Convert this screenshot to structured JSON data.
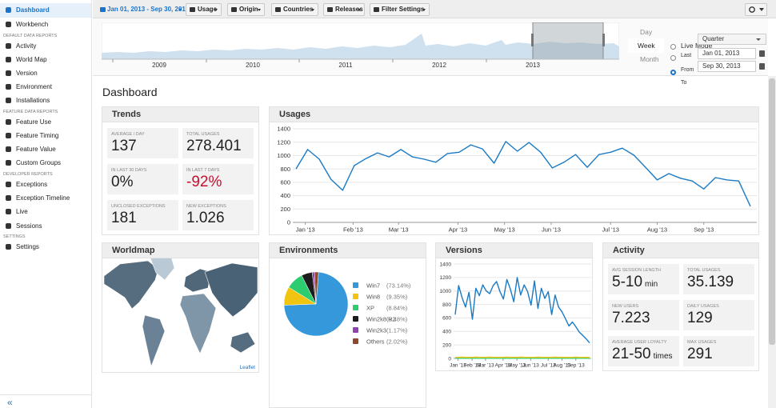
{
  "sidebar": {
    "top": [
      "Dashboard",
      "Workbench"
    ],
    "active": 0,
    "sections": [
      {
        "heading": "DEFAULT DATA REPORTS",
        "items": [
          "Activity",
          "World Map",
          "Version",
          "Environment",
          "Installations"
        ]
      },
      {
        "heading": "FEATURE DATA REPORTS",
        "items": [
          "Feature Use",
          "Feature Timing",
          "Feature Value",
          "Custom Groups"
        ]
      },
      {
        "heading": "DEVELOPER REPORTS",
        "items": [
          "Exceptions",
          "Exception Timeline",
          "Live",
          "Sessions"
        ]
      },
      {
        "heading": "SETTINGS",
        "items": [
          "Settings"
        ]
      }
    ],
    "collapse": "«"
  },
  "toolbar": {
    "date_range": "Jan 01, 2013 - Sep 30, 2013",
    "menus": [
      "Usage",
      "Origin",
      "Countries",
      "Releases",
      "Filter Settings"
    ]
  },
  "timeline": {
    "years": [
      "2009",
      "2010",
      "2011",
      "2012",
      "2013"
    ]
  },
  "range": {
    "granularity": [
      "Day",
      "Week",
      "Month"
    ],
    "selected": 1,
    "live_mode": "Live Mode",
    "last": "Last",
    "last_value": "Quarter",
    "from": "From",
    "from_value": "Jan 01, 2013",
    "to": "To",
    "to_value": "Sep 30, 2013"
  },
  "page_title": "Dashboard",
  "trends": {
    "title": "Trends",
    "metrics": [
      {
        "label": "AVERAGE / DAY",
        "value": "137"
      },
      {
        "label": "TOTAL USAGES",
        "value": "278.401"
      },
      {
        "label": "IN LAST 30 DAYS",
        "value": "0%"
      },
      {
        "label": "IN LAST 7 DAYS",
        "value": "-92%",
        "color": "#c8102e"
      },
      {
        "label": "UNCLOSED EXCEPTIONS",
        "value": "181"
      },
      {
        "label": "NEW EXCEPTIONS",
        "value": "1.026"
      }
    ]
  },
  "usages": {
    "title": "Usages",
    "type": "line",
    "color": "#1a7ac4",
    "x": [
      0,
      1,
      2,
      3,
      4,
      5,
      6,
      7,
      8,
      9,
      10,
      11,
      12,
      13,
      14,
      15,
      16,
      17,
      18,
      19,
      20,
      21,
      22,
      23,
      24,
      25,
      26,
      27,
      28,
      29,
      30,
      31,
      32,
      33,
      34,
      35,
      36,
      37,
      38,
      39
    ],
    "values": [
      800,
      1090,
      945,
      645,
      480,
      850,
      955,
      1040,
      980,
      1090,
      980,
      945,
      900,
      1030,
      1050,
      1160,
      1100,
      885,
      1210,
      1065,
      1195,
      1050,
      815,
      900,
      1015,
      825,
      1015,
      1050,
      1110,
      1005,
      825,
      635,
      730,
      660,
      620,
      500,
      670,
      635,
      620,
      240
    ],
    "xlim": [
      0,
      39
    ],
    "xticks": [
      {
        "value": 0.8,
        "label": "Jan '13"
      },
      {
        "value": 4.9,
        "label": "Feb '13"
      },
      {
        "value": 8.8,
        "label": "Mar '13"
      },
      {
        "value": 13.9,
        "label": "Apr '13"
      },
      {
        "value": 17.9,
        "label": "May '13"
      },
      {
        "value": 21.9,
        "label": "Jun '13"
      },
      {
        "value": 27.0,
        "label": "Jul '13"
      },
      {
        "value": 31.0,
        "label": "Aug '13"
      },
      {
        "value": 35.0,
        "label": "Sep '13"
      }
    ],
    "ylim": [
      0,
      1400
    ],
    "yticks": [
      0,
      200,
      400,
      600,
      800,
      1000,
      1200,
      1400
    ],
    "grid": true
  },
  "worldmap": {
    "title": "Worldmap",
    "attribution": "Leaflet"
  },
  "environments": {
    "title": "Environments",
    "type": "pie",
    "categories": [
      "Win7",
      "Win8",
      "XP",
      "Win2k8 R2",
      "Win2k3",
      "Others"
    ],
    "values": [
      73.14,
      9.35,
      8.84,
      5.48,
      1.17,
      2.02
    ],
    "value_labels": [
      "(73.14%)",
      "(9.35%)",
      "(8.84%)",
      "(5.48%)",
      "(1.17%)",
      "(2.02%)"
    ],
    "colors": [
      "#3498db",
      "#f1c40f",
      "#2ecc71",
      "#1c1c1c",
      "#8e44ad",
      "#8b4a2b"
    ]
  },
  "versions": {
    "title": "Versions",
    "type": "line",
    "x": [
      0,
      1,
      2,
      3,
      4,
      5,
      6,
      7,
      8,
      9,
      10,
      11,
      12,
      13,
      14,
      15,
      16,
      17,
      18,
      19,
      20,
      21,
      22,
      23,
      24,
      25,
      26,
      27,
      28,
      29,
      30,
      31,
      32,
      33,
      34,
      35,
      36,
      37,
      38,
      39
    ],
    "series": [
      {
        "color": "#1a7ac4",
        "values": [
          650,
          1080,
          900,
          760,
          980,
          580,
          1040,
          930,
          1090,
          1000,
          960,
          1080,
          1140,
          990,
          880,
          1170,
          1030,
          840,
          1200,
          940,
          1090,
          990,
          790,
          1150,
          740,
          1040,
          890,
          990,
          650,
          940,
          760,
          690,
          590,
          480,
          540,
          470,
          390,
          340,
          290,
          230
        ]
      },
      {
        "color": "#f1c40f",
        "values": [
          15,
          15,
          20,
          15,
          15,
          15,
          20,
          15,
          15,
          15,
          20,
          15,
          15,
          15,
          15,
          20,
          15,
          15,
          15,
          20,
          15,
          15,
          15,
          15,
          20,
          15,
          15,
          15,
          15,
          20,
          15,
          15,
          15,
          15,
          15,
          20,
          15,
          15,
          15,
          15
        ]
      },
      {
        "color": "#2ecc71",
        "values": [
          2,
          2,
          2,
          2,
          2,
          2,
          2,
          2,
          2,
          2,
          2,
          2,
          2,
          2,
          2,
          2,
          2,
          2,
          2,
          2,
          2,
          2,
          2,
          2,
          2,
          2,
          2,
          2,
          2,
          2,
          2,
          2,
          2,
          2,
          2,
          2,
          2,
          2,
          2,
          2
        ]
      }
    ],
    "xlim": [
      0,
      39
    ],
    "xticks": [
      {
        "value": 0.8,
        "label": "Jan '13"
      },
      {
        "value": 4.9,
        "label": "Feb '13"
      },
      {
        "value": 8.8,
        "label": "Mar '13"
      },
      {
        "value": 13.9,
        "label": "Apr '13"
      },
      {
        "value": 17.9,
        "label": "May '13"
      },
      {
        "value": 21.9,
        "label": "Jun '13"
      },
      {
        "value": 27.0,
        "label": "Jul '13"
      },
      {
        "value": 31.0,
        "label": "Aug '13"
      },
      {
        "value": 35.0,
        "label": "Sep '13"
      }
    ],
    "ylim": [
      0,
      1400
    ],
    "yticks": [
      0,
      200,
      400,
      600,
      800,
      1000,
      1200,
      1400
    ],
    "grid": true
  },
  "activity": {
    "title": "Activity",
    "metrics": [
      {
        "label": "AVG SESSION LENGTH",
        "value": "5-10",
        "unit": "min"
      },
      {
        "label": "TOTAL USAGES",
        "value": "35.139"
      },
      {
        "label": "NEW USERS",
        "value": "7.223"
      },
      {
        "label": "DAILY USAGES",
        "value": "129"
      },
      {
        "label": "AVERAGE USER LOYALTY",
        "value": "21-50",
        "unit": "times"
      },
      {
        "label": "MAX USAGES",
        "value": "291"
      }
    ]
  }
}
